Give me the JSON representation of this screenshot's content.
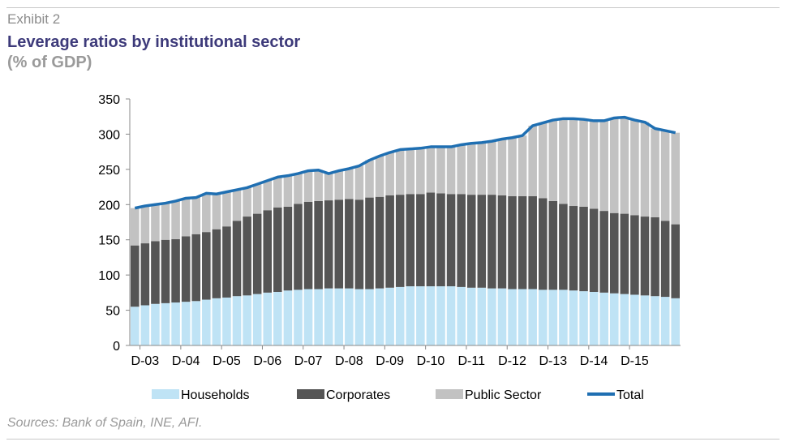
{
  "exhibit": "Exhibit 2",
  "title": "Leverage ratios by institutional sector",
  "subtitle": "(% of GDP)",
  "source": "Sources: Bank of Spain, INE, AFI.",
  "colors": {
    "households": "#bfe3f5",
    "corporates": "#555555",
    "public_sector": "#c2c2c2",
    "total": "#1f6fb2"
  },
  "chart_data": {
    "type": "bar",
    "stacked": true,
    "ylim": [
      0,
      350
    ],
    "yticks": [
      0,
      50,
      100,
      150,
      200,
      250,
      300,
      350
    ],
    "xtick_labels": [
      "D-03",
      "D-04",
      "D-05",
      "D-06",
      "D-07",
      "D-08",
      "D-09",
      "D-10",
      "D-11",
      "D-12",
      "D-13",
      "D-14",
      "D-15"
    ],
    "grid": false,
    "legend": "bottom",
    "period_labels_every": 4,
    "series": [
      {
        "name": "Households",
        "type": "bar",
        "values": [
          55,
          57,
          59,
          60,
          61,
          62,
          63,
          65,
          67,
          68,
          70,
          71,
          73,
          75,
          76,
          78,
          79,
          80,
          80,
          81,
          81,
          81,
          80,
          80,
          81,
          82,
          83,
          84,
          84,
          84,
          84,
          84,
          83,
          82,
          82,
          81,
          81,
          80,
          80,
          80,
          79,
          79,
          79,
          78,
          77,
          76,
          75,
          74,
          73,
          72,
          71,
          70,
          69,
          67
        ]
      },
      {
        "name": "Corporates",
        "type": "bar",
        "values": [
          87,
          88,
          89,
          90,
          90,
          93,
          95,
          96,
          98,
          101,
          107,
          112,
          114,
          117,
          120,
          119,
          122,
          124,
          125,
          125,
          126,
          127,
          127,
          130,
          130,
          131,
          131,
          131,
          131,
          133,
          132,
          131,
          132,
          132,
          132,
          133,
          132,
          132,
          132,
          132,
          130,
          126,
          122,
          120,
          120,
          118,
          116,
          114,
          114,
          113,
          112,
          112,
          108,
          105
        ]
      },
      {
        "name": "Public Sector",
        "type": "bar",
        "values": [
          53,
          53,
          52,
          52,
          54,
          54,
          52,
          55,
          50,
          49,
          44,
          41,
          42,
          42,
          43,
          44,
          43,
          44,
          44,
          39,
          41,
          43,
          48,
          53,
          58,
          61,
          64,
          64,
          65,
          65,
          66,
          67,
          70,
          73,
          74,
          76,
          80,
          83,
          86,
          100,
          107,
          115,
          121,
          124,
          124,
          125,
          128,
          135,
          137,
          135,
          134,
          126,
          128,
          130
        ]
      },
      {
        "name": "Total",
        "type": "line",
        "values": [
          195,
          198,
          200,
          202,
          205,
          209,
          210,
          216,
          215,
          218,
          221,
          224,
          229,
          234,
          239,
          241,
          244,
          248,
          249,
          244,
          248,
          251,
          255,
          263,
          269,
          274,
          278,
          279,
          280,
          282,
          282,
          282,
          285,
          287,
          288,
          290,
          293,
          295,
          298,
          312,
          316,
          320,
          322,
          322,
          321,
          319,
          319,
          323,
          324,
          320,
          317,
          308,
          305,
          302
        ]
      }
    ]
  },
  "legend": [
    {
      "label": "Households",
      "kind": "swatch",
      "color": "#bfe3f5"
    },
    {
      "label": "Corporates",
      "kind": "swatch",
      "color": "#555555"
    },
    {
      "label": "Public Sector",
      "kind": "swatch",
      "color": "#c2c2c2"
    },
    {
      "label": "Total",
      "kind": "line",
      "color": "#1f6fb2"
    }
  ]
}
